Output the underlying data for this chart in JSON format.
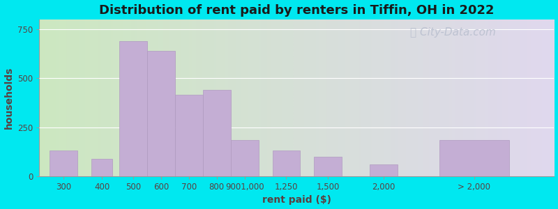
{
  "title": "Distribution of rent paid by renters in Tiffin, OH in 2022",
  "xlabel": "rent paid ($)",
  "ylabel": "households",
  "bar_color": "#c4aed4",
  "bar_edgecolor": "#b09ac0",
  "background_outer": "#00e8f0",
  "background_left": "#cce8c0",
  "background_right": "#e0d8ee",
  "ylim": [
    0,
    800
  ],
  "yticks": [
    0,
    250,
    500,
    750
  ],
  "values": [
    130,
    90,
    690,
    640,
    415,
    440,
    185,
    130,
    100,
    60,
    185
  ],
  "bar_lefts": [
    0.0,
    1.2,
    2.0,
    2.8,
    3.6,
    4.4,
    5.2,
    6.4,
    7.6,
    9.2,
    11.2
  ],
  "bar_widths": [
    0.8,
    0.6,
    0.8,
    0.8,
    0.8,
    0.8,
    0.8,
    0.8,
    0.8,
    0.8,
    2.0
  ],
  "tick_labels": [
    "300",
    "400",
    "500",
    "600",
    "700",
    "800",
    "9001,000",
    "1,250",
    "1,500",
    "2,000",
    "> 2,000"
  ],
  "title_fontsize": 13,
  "label_fontsize": 10,
  "tick_fontsize": 8.5,
  "watermark_text": "City-Data.com",
  "watermark_color": "#b8bece",
  "watermark_fontsize": 11
}
